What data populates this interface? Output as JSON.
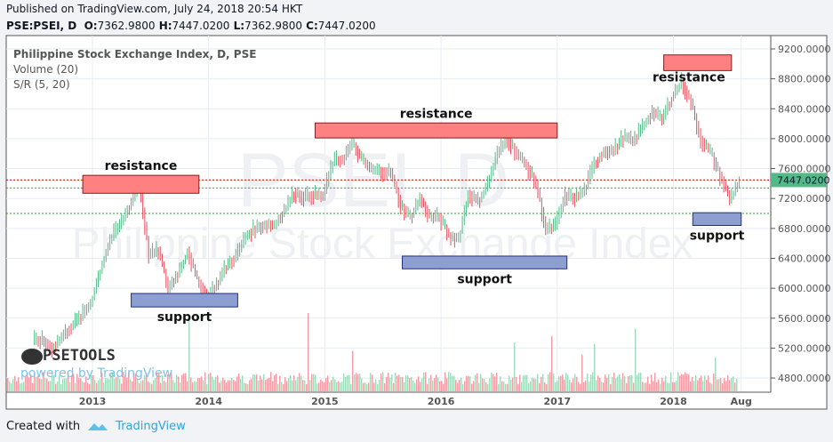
{
  "header": {
    "published": "Published on TradingView.com, July 24, 2018 20:54 HKT",
    "symbol": "PSE:PSEI, D",
    "o_label": "O:",
    "o": "7362.9800",
    "h_label": "H:",
    "h": "7447.0200",
    "l_label": "L:",
    "l": "7362.9800",
    "c_label": "C:",
    "c": "7447.0200"
  },
  "legend": {
    "title": "Philippine Stock Exchange Index, D, PSE",
    "volume": "Volume (20)",
    "sr": "S/R (5, 20)"
  },
  "watermark": {
    "big": "PSEI, D",
    "name": "Philippine Stock Exchange Index"
  },
  "logo": {
    "brand": "PSETOOLS",
    "powered": "powered by TradingView"
  },
  "footer": {
    "created": "Created with",
    "brand": "TradingView"
  },
  "colors": {
    "up": "#53b987",
    "down": "#eb4d5c",
    "resistance": "#ff8080",
    "support": "#8c9fd0",
    "last_price": "#53b987"
  },
  "chart_data": {
    "type": "line",
    "title": "Philippine Stock Exchange Index, D, PSE",
    "ylim": [
      4650,
      9350
    ],
    "y_ticks": [
      "9200.0000",
      "8800.0000",
      "8400.0000",
      "8000.0000",
      "7600.0000",
      "7200.0000",
      "6800.0000",
      "6400.0000",
      "6000.0000",
      "5600.0000",
      "5200.0000",
      "4800.0000"
    ],
    "x_ticks": [
      "2013",
      "2014",
      "2015",
      "2016",
      "2017",
      "2018",
      "Aug"
    ],
    "last_price": "7447.0200",
    "grid": true,
    "monthly_close": {
      "start": "2012-07",
      "values": [
        5300,
        5200,
        5350,
        5500,
        5620,
        5810,
        6250,
        6650,
        6850,
        7100,
        7400,
        6450,
        6500,
        6000,
        6200,
        6500,
        6100,
        5890,
        6050,
        6300,
        6430,
        6700,
        6800,
        6850,
        6850,
        7050,
        7280,
        7220,
        7250,
        7230,
        7690,
        7730,
        7940,
        7710,
        7580,
        7560,
        7550,
        7100,
        6950,
        7200,
        6950,
        6950,
        6690,
        6670,
        7260,
        7160,
        7400,
        7800,
        8000,
        7800,
        7630,
        7400,
        6780,
        6840,
        7230,
        7210,
        7310,
        7660,
        7840,
        7840,
        8020,
        7960,
        8170,
        8360,
        8250,
        8560,
        8760,
        8480,
        7980,
        7820,
        7500,
        7190,
        7447
      ]
    },
    "zones": [
      {
        "label": "resistance",
        "kind": "resistance",
        "from": "2012-12",
        "to": "2013-12",
        "low": 7270,
        "high": 7510
      },
      {
        "label": "resistance",
        "kind": "resistance",
        "from": "2014-12",
        "to": "2017-01",
        "low": 8010,
        "high": 8210
      },
      {
        "label": "resistance",
        "kind": "resistance",
        "from": "2017-12",
        "to": "2018-07",
        "low": 8910,
        "high": 9120
      },
      {
        "label": "support",
        "kind": "support",
        "from": "2013-05",
        "to": "2014-04",
        "low": 5750,
        "high": 5930
      },
      {
        "label": "support",
        "kind": "support",
        "from": "2015-09",
        "to": "2017-02",
        "low": 6260,
        "high": 6430
      },
      {
        "label": "support",
        "kind": "support",
        "from": "2018-03",
        "to": "2018-08",
        "low": 6840,
        "high": 7010
      }
    ],
    "levels": [
      {
        "price": 7447,
        "color": "#e00000"
      },
      {
        "price": 7340,
        "color": "#20b020"
      },
      {
        "price": 7000,
        "color": "#20b020"
      }
    ]
  }
}
